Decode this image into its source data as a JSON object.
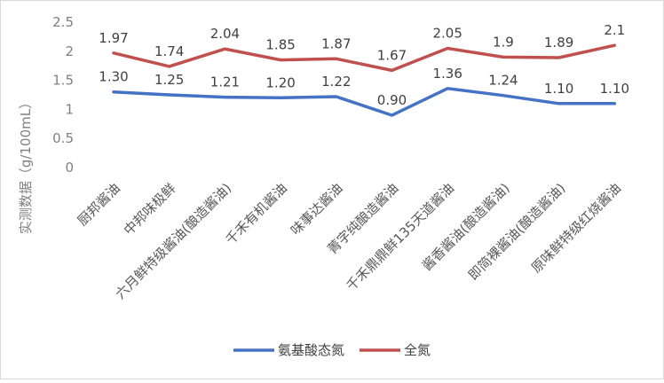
{
  "chart_data": {
    "type": "line",
    "title": "",
    "xlabel": "",
    "ylabel": "实测数据（g/100mL）",
    "ylim": [
      0,
      2.5
    ],
    "yticks": [
      "0",
      "0.5",
      "1",
      "1.5",
      "2",
      "2.5"
    ],
    "grid": false,
    "legend_position": "bottom",
    "categories": [
      "厨邦酱油",
      "中邦味极鲜",
      "六月鲜特级酱油(酿造酱油)",
      "千禾有机酱油",
      "味事达酱油",
      "菁字纯酿造酱油",
      "千禾鼎鼎鲜135天道酱油",
      "酱香酱油(酿造酱油)",
      "即简裸酱油(酿造酱油)",
      "原味鲜特级红烧酱油"
    ],
    "series": [
      {
        "name": "氨基酸态氮",
        "color": "#4472C4",
        "values": [
          1.3,
          1.25,
          1.21,
          1.2,
          1.22,
          0.9,
          1.36,
          1.24,
          1.1,
          1.1
        ],
        "labels": [
          "1.30",
          "1.25",
          "1.21",
          "1.20",
          "1.22",
          "0.90",
          "1.36",
          "1.24",
          "1.10",
          "1.10"
        ]
      },
      {
        "name": "全氮",
        "color": "#C0504D",
        "values": [
          1.97,
          1.74,
          2.04,
          1.85,
          1.87,
          1.67,
          2.05,
          1.9,
          1.89,
          2.1
        ],
        "labels": [
          "1.97",
          "1.74",
          "2.04",
          "1.85",
          "1.87",
          "1.67",
          "2.05",
          "1.9",
          "1.89",
          "2.1"
        ]
      }
    ]
  }
}
